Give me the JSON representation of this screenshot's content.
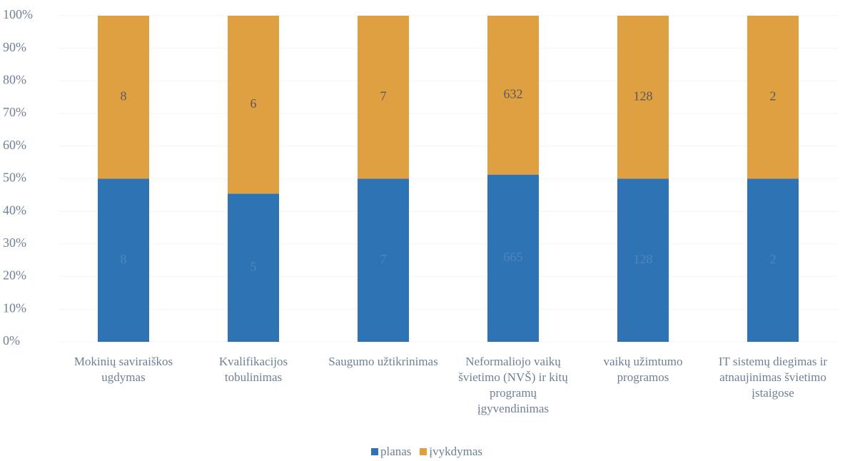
{
  "chart_data": {
    "type": "bar",
    "stacked": "percent",
    "categories": [
      "Mokinių saviraiškos ugdymas",
      "Kvalifikacijos tobulinimas",
      "Saugumo užtikrinimas",
      "Neformaliojo vaikų švietimo (NVŠ) ir kitų programų įgyvendinimas",
      "vaikų užimtumo programos",
      "IT sistemų diegimas ir atnaujinimas švietimo įstaigose"
    ],
    "series": [
      {
        "name": "planas",
        "color": "#2e74b5",
        "values": [
          8,
          5,
          7,
          665,
          128,
          2
        ]
      },
      {
        "name": "įvykdymas",
        "color": "#dfa042",
        "values": [
          8,
          6,
          7,
          632,
          128,
          2
        ]
      }
    ],
    "ylim": [
      0,
      100
    ],
    "yticks": [
      {
        "value": 0,
        "label": "0%"
      },
      {
        "value": 10,
        "label": "10%"
      },
      {
        "value": 20,
        "label": "20%"
      },
      {
        "value": 30,
        "label": "30%"
      },
      {
        "value": 40,
        "label": "40%"
      },
      {
        "value": 50,
        "label": "50%"
      },
      {
        "value": 60,
        "label": "60%"
      },
      {
        "value": 70,
        "label": "70%"
      },
      {
        "value": 80,
        "label": "80%"
      },
      {
        "value": 90,
        "label": "90%"
      },
      {
        "value": 100,
        "label": "100%"
      }
    ],
    "legend": "bottom"
  }
}
